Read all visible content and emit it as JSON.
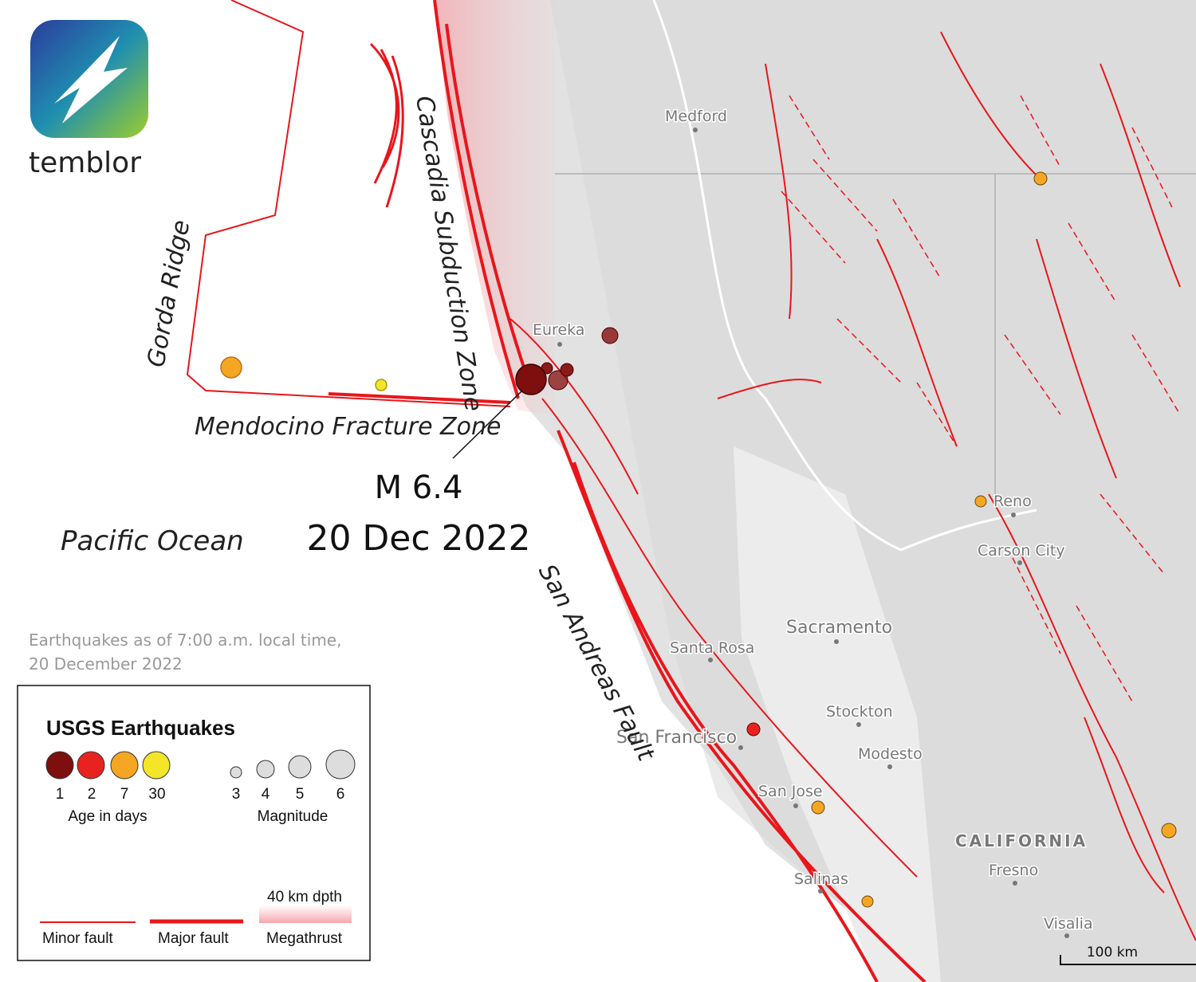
{
  "brand": "temblor",
  "features": {
    "cascadia": "Cascadia Subduction Zone",
    "gorda": "Gorda Ridge",
    "mendocino": "Mendocino Fracture Zone",
    "ocean": "Pacific Ocean",
    "san_andreas": "San Andreas Fault"
  },
  "event": {
    "magnitude": "M 6.4",
    "date": "20 Dec 2022"
  },
  "note": {
    "line1": "Earthquakes as of 7:00 a.m. local time,",
    "line2": "20 December 2022"
  },
  "cities": {
    "medford": "Medford",
    "eureka": "Eureka",
    "reno": "Reno",
    "carson": "Carson City",
    "sacramento": "Sacramento",
    "santa_rosa": "Santa Rosa",
    "stockton": "Stockton",
    "san_francisco": "San Francisco",
    "modesto": "Modesto",
    "san_jose": "San Jose",
    "state": "CALIFORNIA",
    "fresno": "Fresno",
    "salinas": "Salinas",
    "visalia": "Visalia"
  },
  "legend": {
    "title": "USGS Earthquakes",
    "ages": [
      1,
      2,
      7,
      30
    ],
    "age_label": "Age in days",
    "magnitudes": [
      3,
      4,
      5,
      6
    ],
    "magnitude_label": "Magnitude",
    "depth": "40 km dpth",
    "minor": "Minor fault",
    "major": "Major fault",
    "megathrust": "Megathrust"
  },
  "scale": "100 km"
}
